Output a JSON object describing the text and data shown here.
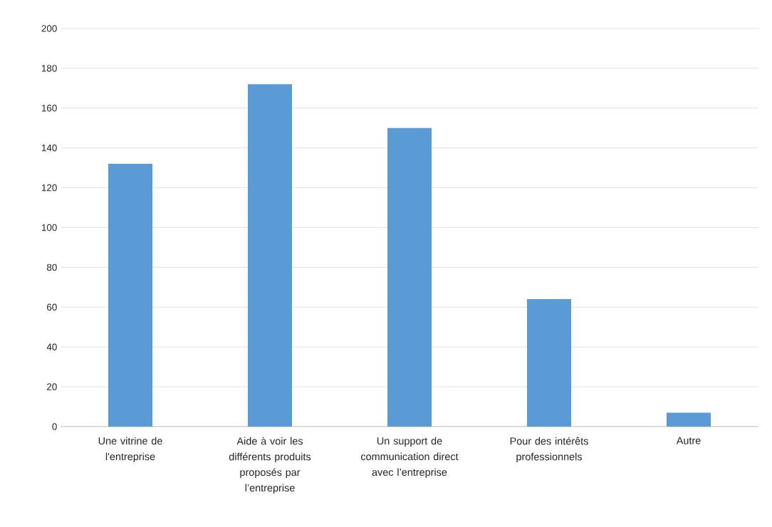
{
  "chart_data": {
    "type": "bar",
    "categories": [
      "Une vitrine de l'entreprise",
      "Aide à voir les différents produits proposés par l’entreprise",
      "Un support de communication direct avec l’entreprise",
      "Pour des intérêts professionnels",
      "Autre"
    ],
    "values": [
      132,
      172,
      150,
      64,
      7
    ],
    "color": "#5b9bd5",
    "ylim": [
      0,
      200
    ],
    "yticks": [
      0,
      20,
      40,
      60,
      80,
      100,
      120,
      140,
      160,
      180,
      200
    ],
    "grid": "y"
  }
}
